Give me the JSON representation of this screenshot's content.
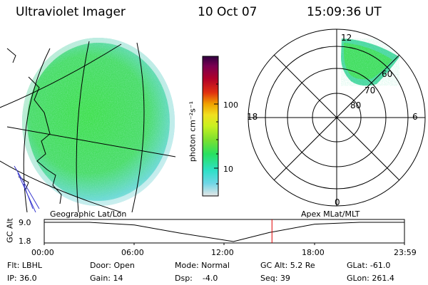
{
  "header": {
    "instrument": "Ultraviolet Imager",
    "date": "10 Oct 07",
    "time": "15:09:36 UT"
  },
  "colorbar": {
    "unit_label": "photon cm⁻²s⁻¹",
    "ticks": [
      "100",
      "10"
    ],
    "scale": "log",
    "colors": [
      "#e6e6e6",
      "#6fd6e6",
      "#2fe0c8",
      "#28e060",
      "#7ae030",
      "#c8f020",
      "#f0e020",
      "#f0a000",
      "#e03010",
      "#b0002a",
      "#7a0050",
      "#300040"
    ]
  },
  "polar_plot": {
    "mlt_labels": {
      "top": "12",
      "left": "18",
      "right": "6",
      "bottom": "0"
    },
    "lat_labels": [
      "60",
      "70",
      "80"
    ]
  },
  "timeline": {
    "left_caption": "Geographic Lat/Lon",
    "right_caption": "Apex MLat/MLT",
    "yaxis_label": "GC Alt",
    "yticks": [
      "9.0",
      "1.8"
    ],
    "xticks": [
      "00:00",
      "06:00",
      "12:00",
      "18:00",
      "23:59"
    ],
    "current_time_hours": 15.16,
    "marker_color": "#e00000",
    "altitude_curve": [
      {
        "t": 0,
        "alt": 9.0
      },
      {
        "t": 3,
        "alt": 9.0
      },
      {
        "t": 6,
        "alt": 8.0
      },
      {
        "t": 9,
        "alt": 5.0
      },
      {
        "t": 12.6,
        "alt": 1.8
      },
      {
        "t": 15,
        "alt": 5.2
      },
      {
        "t": 18,
        "alt": 8.3
      },
      {
        "t": 21,
        "alt": 9.0
      },
      {
        "t": 23.98,
        "alt": 9.0
      }
    ]
  },
  "info": {
    "flt": "Flt: LBHL",
    "ip": "IP: 36.0",
    "door": "Door: Open",
    "gain": "Gain: 14",
    "mode": "Mode: Normal",
    "dsp": "Dsp:    -4.0",
    "gc_alt": "GC Alt: 5.2 Re",
    "seq": "Seq: 39",
    "glat": "GLat: -61.0",
    "glon": "GLon: 261.4"
  }
}
